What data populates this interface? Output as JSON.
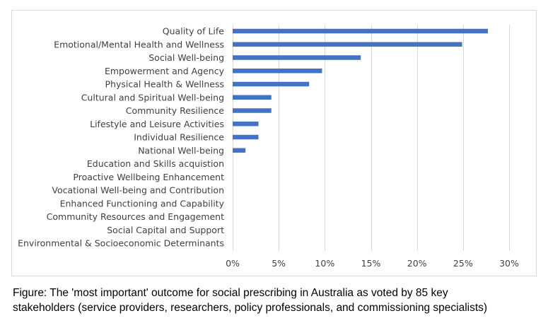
{
  "chart_data": {
    "type": "bar",
    "orientation": "horizontal",
    "title": "",
    "xlabel": "",
    "ylabel": "",
    "categories": [
      "Quality of Life",
      "Emotional/Mental Health and Wellness",
      "Social Well-being",
      "Empowerment and Agency",
      "Physical Health & Wellness",
      "Cultural and Spiritual Well-being",
      "Community Resilience",
      "Lifestyle and Leisure Activities",
      "Individual Resilience",
      "National Well-being",
      "Education and Skills acquistion",
      "Proactive Wellbeing Enhancement",
      "Vocational Well-being and Contribution",
      "Enhanced Functioning and Capability",
      "Community Resources and Engagement",
      "Social Capital and Support",
      "Environmental & Socioeconomic Determinants"
    ],
    "values": [
      27.7,
      24.9,
      13.9,
      9.7,
      8.3,
      4.2,
      4.2,
      2.8,
      2.8,
      1.4,
      0,
      0,
      0,
      0,
      0,
      0,
      0
    ],
    "value_unit": "percent",
    "xlim": [
      0,
      30
    ],
    "xticks": [
      0,
      5,
      10,
      15,
      20,
      25,
      30
    ],
    "xtick_labels": [
      "0%",
      "5%",
      "10%",
      "15%",
      "20%",
      "25%",
      "30%"
    ],
    "grid": true,
    "bar_color": "#4472c4"
  },
  "caption": {
    "line1": "Figure: The 'most important' outcome for social prescribing in Australia as voted by 85 key",
    "line2": "stakeholders (service providers, researchers, policy professionals, and commissioning specialists)"
  }
}
